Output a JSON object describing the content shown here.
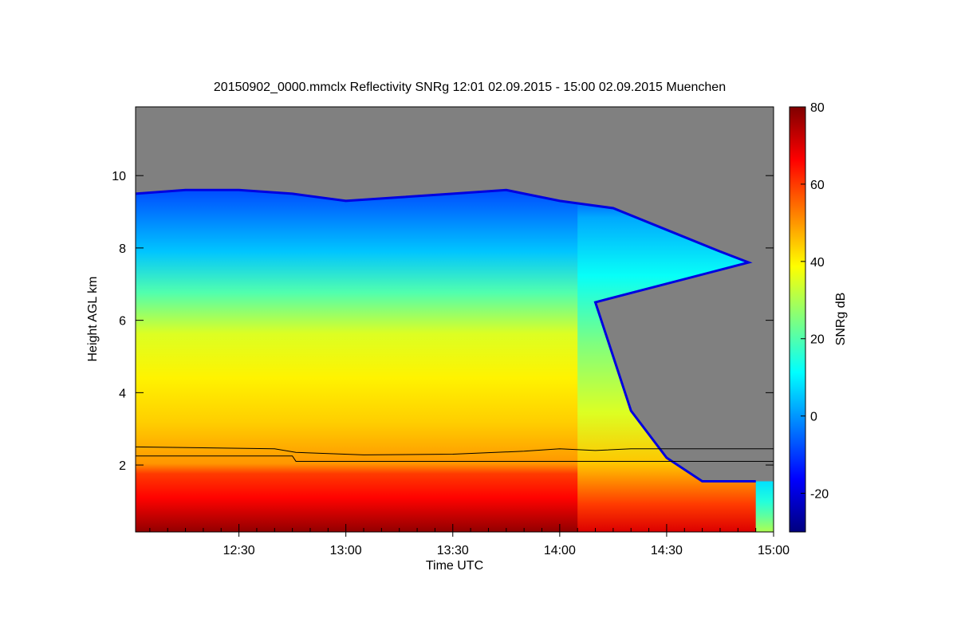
{
  "chart_data": {
    "type": "heatmap",
    "title": "20150902_0000.mmclx Reflectivity SNRg   12:01 02.09.2015 - 15:00 02.09.2015 Muenchen",
    "xlabel": "Time UTC",
    "ylabel": "Height AGL km",
    "colorbar_label": "SNRg dB",
    "xlim": [
      "12:01",
      "15:00"
    ],
    "x_ticks": [
      "12:30",
      "13:00",
      "13:30",
      "14:00",
      "14:30",
      "15:00"
    ],
    "ylim": [
      0.15,
      11.9
    ],
    "y_ticks": [
      2,
      4,
      6,
      8,
      10
    ],
    "colorbar_range": [
      -30,
      80
    ],
    "colorbar_ticks": [
      -20,
      0,
      20,
      40,
      60,
      80
    ],
    "colormap": [
      "#00007f",
      "#0000ff",
      "#007fff",
      "#00ffff",
      "#7fff7f",
      "#ffff00",
      "#ff7f00",
      "#ff0000",
      "#7f0000"
    ],
    "no_data_color": "#808080",
    "cloud_top_km": [
      {
        "time": "12:01",
        "height": 9.5
      },
      {
        "time": "12:15",
        "height": 9.6
      },
      {
        "time": "12:30",
        "height": 9.6
      },
      {
        "time": "12:45",
        "height": 9.5
      },
      {
        "time": "13:00",
        "height": 9.3
      },
      {
        "time": "13:15",
        "height": 9.4
      },
      {
        "time": "13:30",
        "height": 9.5
      },
      {
        "time": "13:45",
        "height": 9.6
      },
      {
        "time": "14:00",
        "height": 9.3
      },
      {
        "time": "14:15",
        "height": 9.1
      },
      {
        "time": "14:30",
        "height": 8.5
      },
      {
        "time": "14:45",
        "height": 7.9
      },
      {
        "time": "14:53",
        "height": 7.6
      }
    ],
    "cloud_base_km": [
      {
        "time": "14:10",
        "height": 6.5
      },
      {
        "time": "14:15",
        "height": 5.0
      },
      {
        "time": "14:20",
        "height": 3.5
      },
      {
        "time": "14:30",
        "height": 2.2
      },
      {
        "time": "14:40",
        "height": 1.55
      },
      {
        "time": "14:55",
        "height": 1.55
      }
    ],
    "series": [
      {
        "values": [
          {
            "time": "12:01",
            "height": 2.5
          },
          {
            "time": "12:40",
            "height": 2.45
          },
          {
            "time": "12:46",
            "height": 2.35
          },
          {
            "time": "13:05",
            "height": 2.28
          },
          {
            "time": "13:30",
            "height": 2.3
          },
          {
            "time": "13:50",
            "height": 2.38
          },
          {
            "time": "14:00",
            "height": 2.45
          },
          {
            "time": "14:10",
            "height": 2.4
          },
          {
            "time": "14:20",
            "height": 2.45
          },
          {
            "time": "15:00",
            "height": 2.45
          }
        ]
      },
      {
        "values": [
          {
            "time": "12:01",
            "height": 2.25
          },
          {
            "time": "12:45",
            "height": 2.25
          },
          {
            "time": "12:46",
            "height": 2.1
          },
          {
            "time": "15:00",
            "height": 2.1
          }
        ]
      }
    ]
  }
}
